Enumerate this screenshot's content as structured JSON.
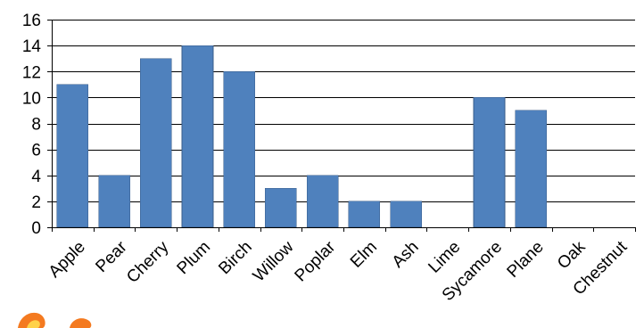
{
  "chart_data": {
    "type": "bar",
    "title": "",
    "xlabel": "",
    "ylabel": "",
    "categories": [
      "Apple",
      "Pear",
      "Cherry",
      "Plum",
      "Birch",
      "Willow",
      "Poplar",
      "Elm",
      "Ash",
      "Lime",
      "Sycamore",
      "Plane",
      "Oak",
      "Chestnut"
    ],
    "values": [
      11,
      4,
      13,
      14,
      12,
      3,
      4,
      2,
      2,
      0,
      10,
      9,
      0,
      0
    ],
    "ylim": [
      0,
      16
    ],
    "yticks": [
      0,
      2,
      4,
      6,
      8,
      10,
      12,
      14,
      16
    ],
    "grid": true,
    "legend": "none",
    "bar_color": "#4F81BD",
    "bar_border_color": "#385D8A",
    "decoration_colors": [
      "#F47A20",
      "#FFD24A"
    ]
  }
}
